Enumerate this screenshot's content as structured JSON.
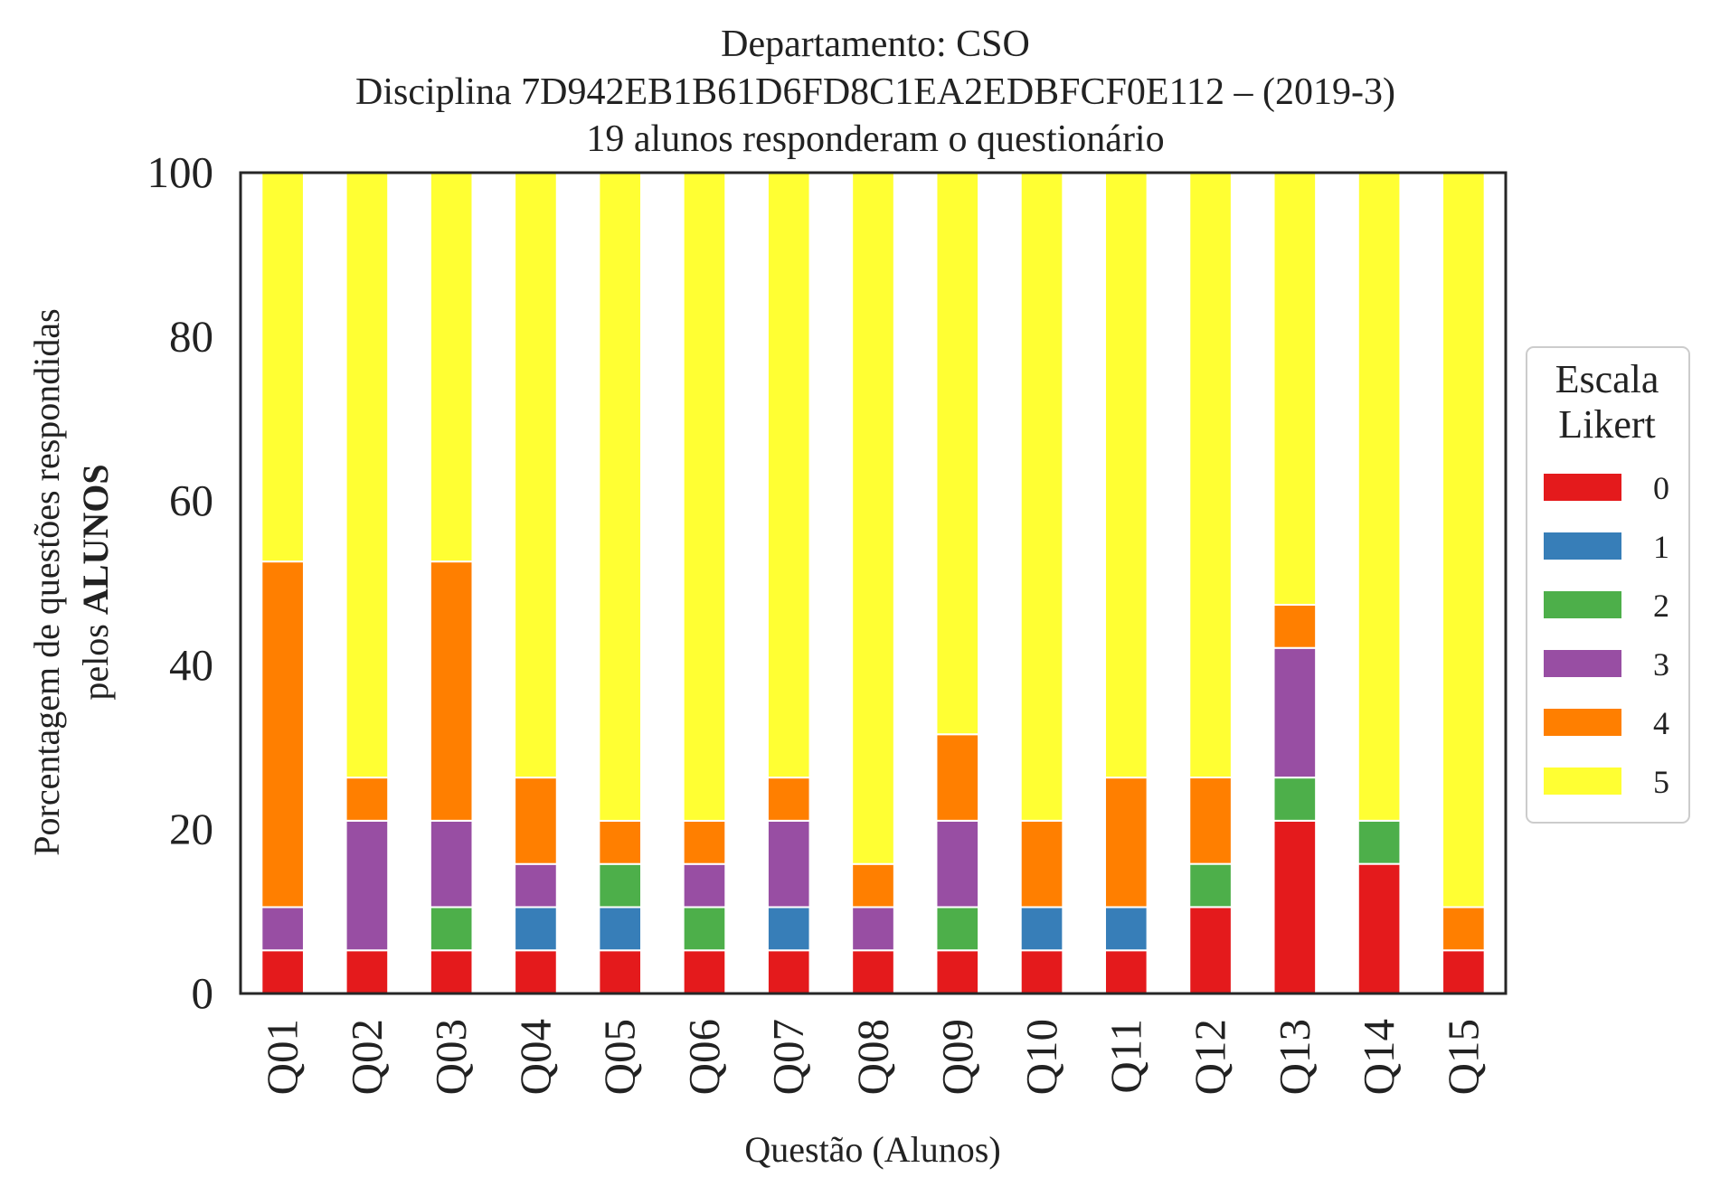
{
  "chart_data": {
    "type": "bar",
    "stacked": true,
    "title_lines": [
      "Departamento: CSO",
      "Disciplina 7D942EB1B61D6FD8C1EA2EDBFCF0E112 – (2019-3)",
      "19 alunos responderam o questionário"
    ],
    "xlabel": "Questão (Alunos)",
    "ylabel_line1": "Porcentagem de questões respondidas",
    "ylabel_line2_prefix": "pelos ",
    "ylabel_line2_bold": "ALUNOS",
    "ylim": [
      0,
      100
    ],
    "yticks": [
      "0",
      "20",
      "40",
      "60",
      "80",
      "100"
    ],
    "grid": false,
    "legend_title_lines": [
      "Escala",
      "Likert"
    ],
    "legend_position": "right",
    "categories": [
      "Q01",
      "Q02",
      "Q03",
      "Q04",
      "Q05",
      "Q06",
      "Q07",
      "Q08",
      "Q09",
      "Q10",
      "Q11",
      "Q12",
      "Q13",
      "Q14",
      "Q15"
    ],
    "series": [
      {
        "name": "0",
        "color": "#e41a1c",
        "values": [
          5.26,
          5.26,
          5.26,
          5.26,
          5.26,
          5.26,
          5.26,
          5.26,
          5.26,
          5.26,
          5.26,
          10.53,
          21.05,
          15.79,
          5.26
        ]
      },
      {
        "name": "1",
        "color": "#377eb8",
        "values": [
          0,
          0,
          0,
          5.26,
          5.26,
          0,
          5.26,
          0,
          0,
          5.26,
          5.26,
          0,
          0,
          0,
          0
        ]
      },
      {
        "name": "2",
        "color": "#4daf4a",
        "values": [
          0,
          0,
          5.26,
          0,
          5.26,
          5.26,
          0,
          0,
          5.26,
          0,
          0,
          5.26,
          5.26,
          5.26,
          0
        ]
      },
      {
        "name": "3",
        "color": "#984ea3",
        "values": [
          5.26,
          15.79,
          10.53,
          5.26,
          0,
          5.26,
          10.53,
          5.26,
          10.53,
          0,
          0,
          0,
          15.79,
          0,
          0
        ]
      },
      {
        "name": "4",
        "color": "#ff7f00",
        "values": [
          42.11,
          5.26,
          31.58,
          10.53,
          5.26,
          5.26,
          5.26,
          5.26,
          10.53,
          10.53,
          15.79,
          10.53,
          5.26,
          0,
          5.26
        ]
      },
      {
        "name": "5",
        "color": "#ffff33",
        "values": [
          47.37,
          73.68,
          47.37,
          73.68,
          78.95,
          78.95,
          73.68,
          84.21,
          68.42,
          78.95,
          73.68,
          73.68,
          52.63,
          78.95,
          89.47
        ]
      }
    ]
  }
}
